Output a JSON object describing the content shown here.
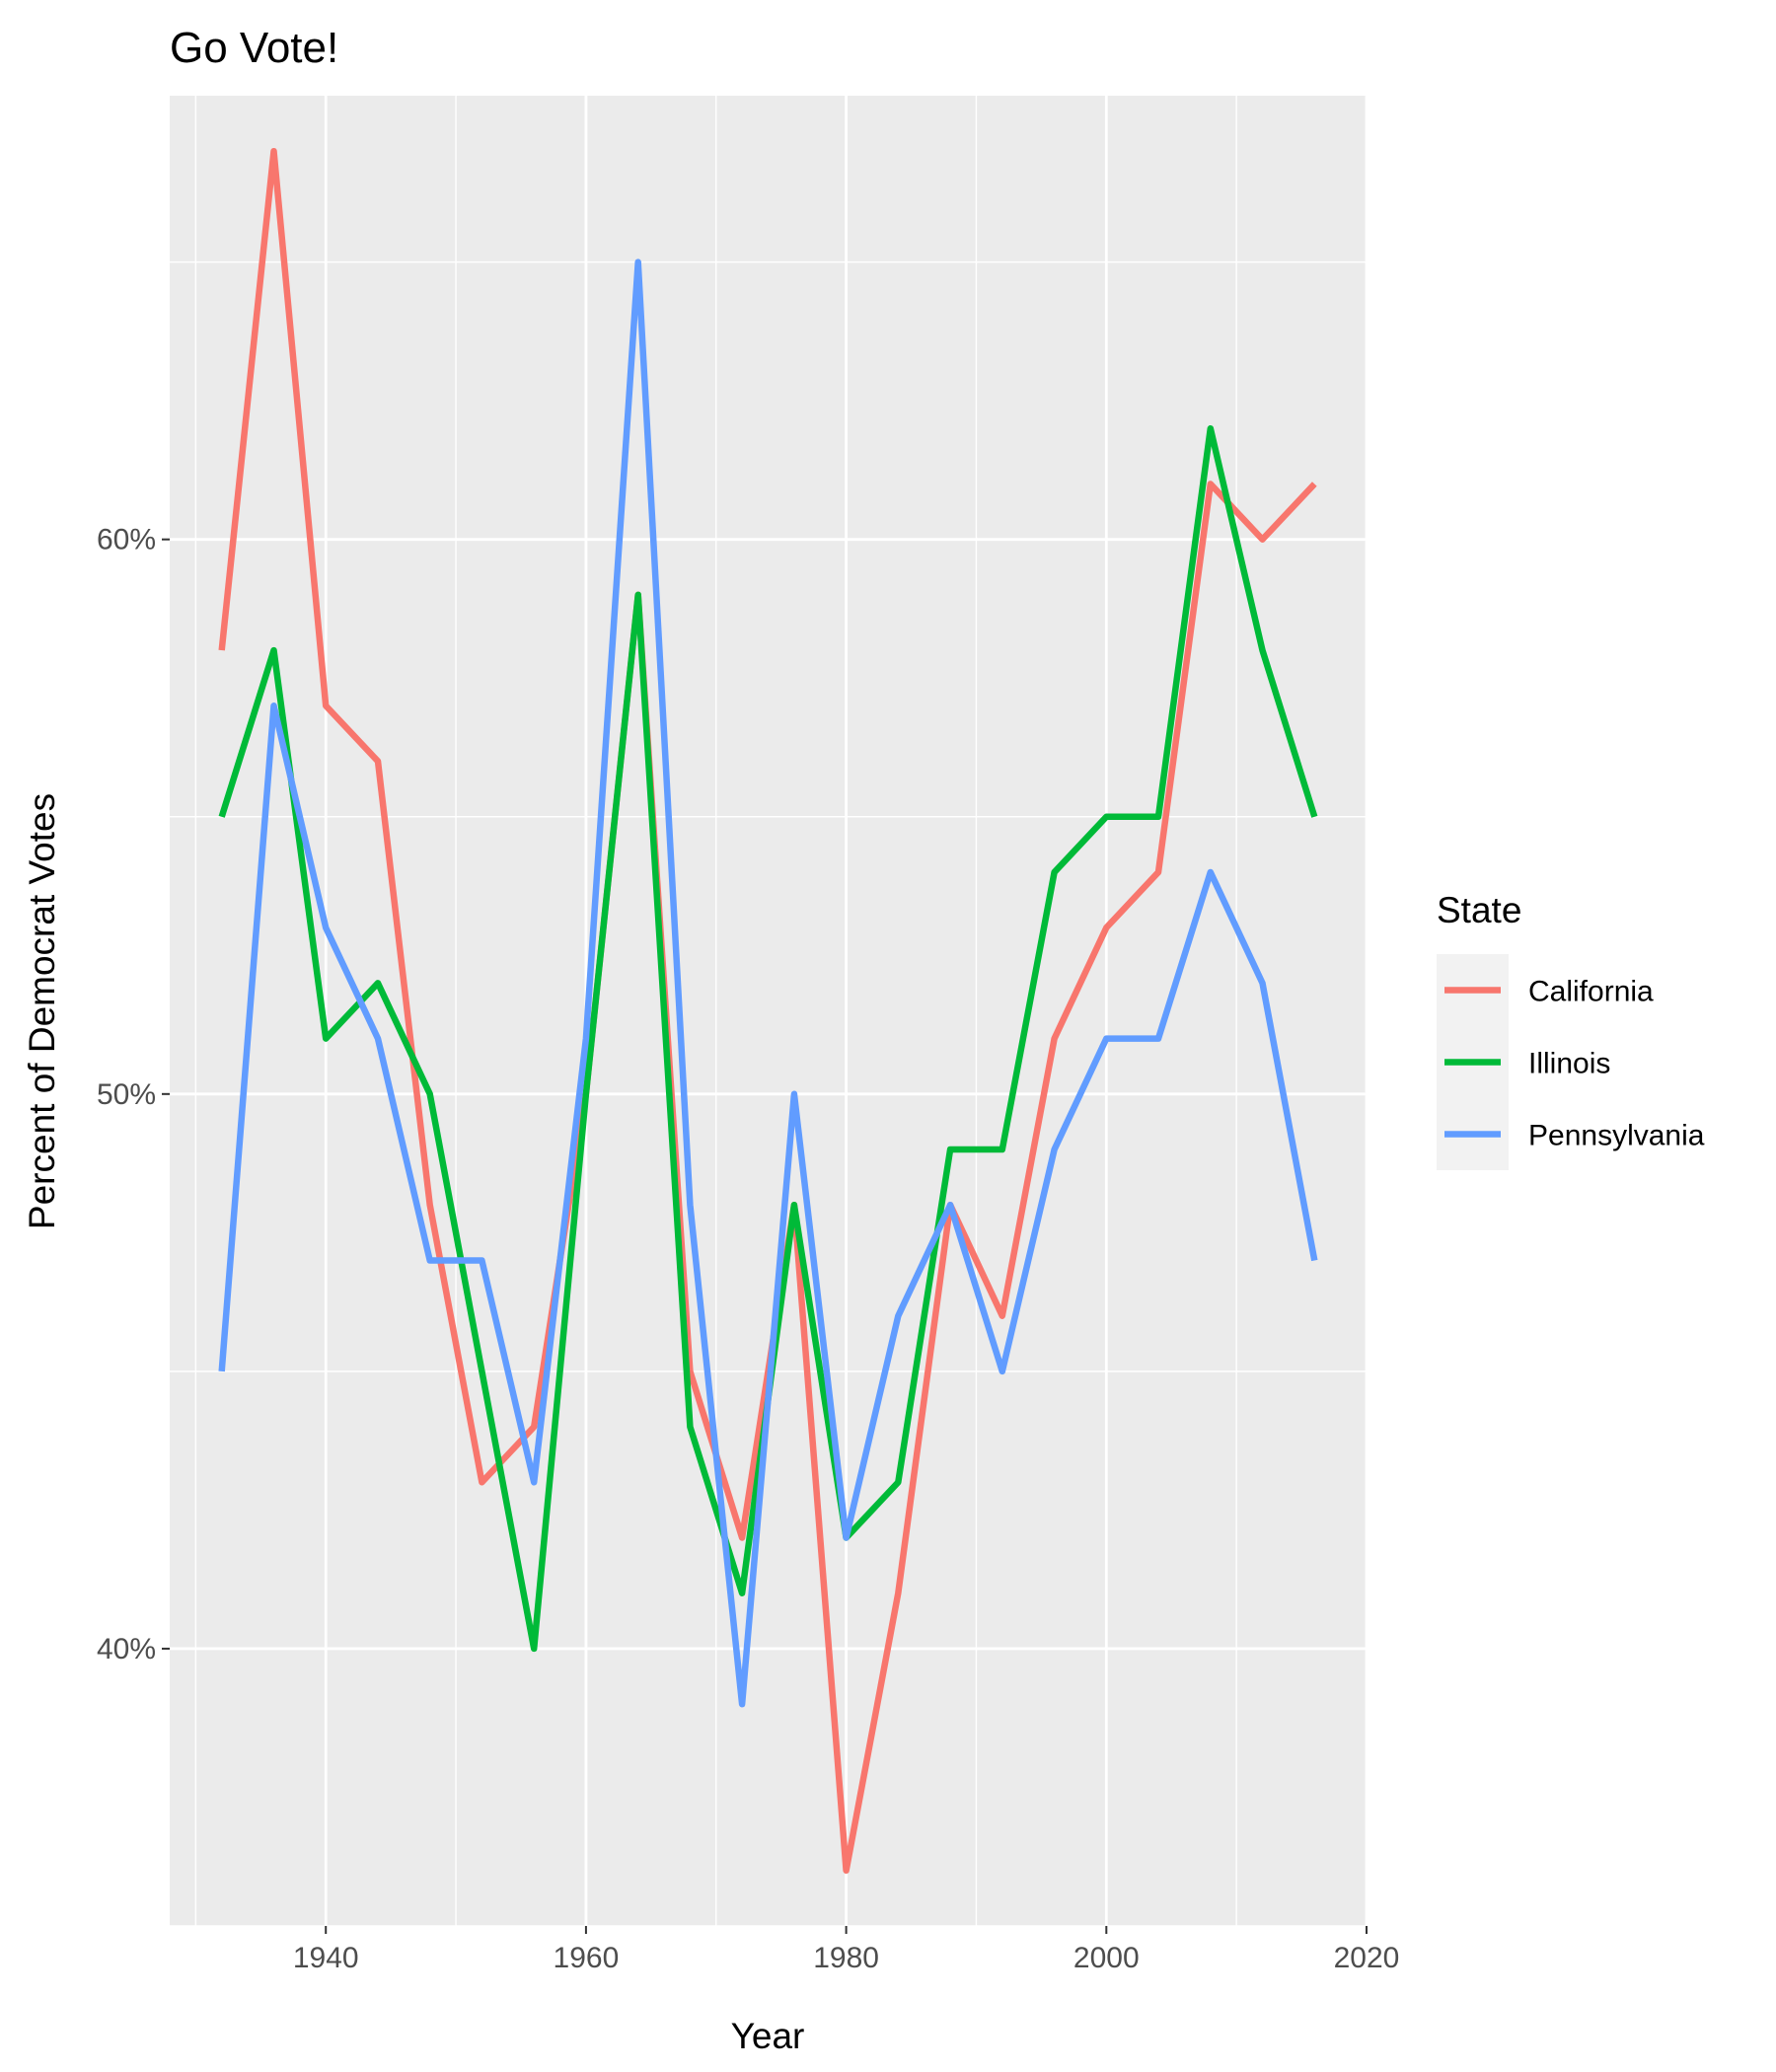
{
  "chart_data": {
    "type": "line",
    "title": "Go Vote!",
    "xlabel": "Year",
    "ylabel": "Percent of Democrat Votes",
    "xlim": [
      1928,
      2020
    ],
    "ylim": [
      35,
      68
    ],
    "x_ticks": [
      1940,
      1960,
      1980,
      2000,
      2020
    ],
    "x_tick_labels": [
      "1940",
      "1960",
      "1980",
      "2000",
      "2020"
    ],
    "y_ticks": [
      40,
      50,
      60
    ],
    "y_tick_labels": [
      "40%",
      "50%",
      "60%"
    ],
    "grid": true,
    "legend": {
      "title": "State",
      "placement": "right"
    },
    "x": [
      1932,
      1936,
      1940,
      1944,
      1948,
      1952,
      1956,
      1960,
      1964,
      1968,
      1972,
      1976,
      1980,
      1984,
      1988,
      1992,
      1996,
      2000,
      2004,
      2008,
      2012,
      2016
    ],
    "series": [
      {
        "name": "California",
        "color": "#F8766D",
        "values": [
          58,
          67,
          57,
          56,
          48,
          43,
          44,
          50,
          59,
          45,
          42,
          48,
          36,
          41,
          48,
          46,
          51,
          53,
          54,
          61,
          60,
          61
        ]
      },
      {
        "name": "Illinois",
        "color": "#00BA38",
        "values": [
          55,
          58,
          51,
          52,
          50,
          45,
          40,
          50,
          59,
          44,
          41,
          48,
          42,
          43,
          49,
          49,
          54,
          55,
          55,
          62,
          58,
          55
        ]
      },
      {
        "name": "Pennsylvania",
        "color": "#619CFF",
        "values": [
          45,
          57,
          53,
          51,
          47,
          47,
          43,
          51,
          65,
          48,
          39,
          50,
          42,
          46,
          48,
          45,
          49,
          51,
          51,
          54,
          52,
          47
        ]
      }
    ]
  }
}
